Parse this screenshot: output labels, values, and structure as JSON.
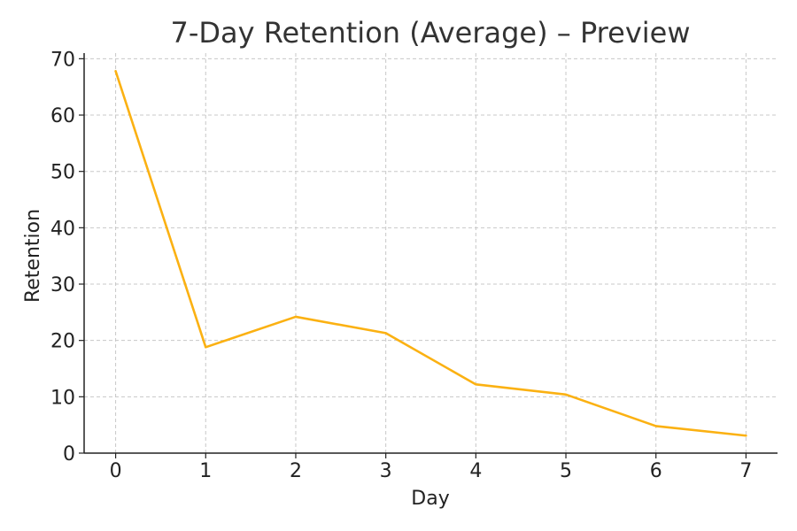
{
  "chart_data": {
    "type": "line",
    "title": "7-Day Retention (Average) – Preview",
    "xlabel": "Day",
    "ylabel": "Retention",
    "x": [
      0,
      1,
      2,
      3,
      4,
      5,
      6,
      7
    ],
    "series": [
      {
        "values": [
          67.8,
          18.8,
          24.2,
          21.3,
          12.2,
          10.4,
          4.8,
          3.1
        ],
        "color": "#FBB112"
      }
    ],
    "xlim": [
      -0.35,
      7.35
    ],
    "ylim": [
      0,
      71
    ],
    "xticks": [
      "0",
      "1",
      "2",
      "3",
      "4",
      "5",
      "6",
      "7"
    ],
    "yticks": [
      "0",
      "10",
      "20",
      "30",
      "40",
      "50",
      "60",
      "70"
    ],
    "grid": true,
    "legend": "none"
  }
}
